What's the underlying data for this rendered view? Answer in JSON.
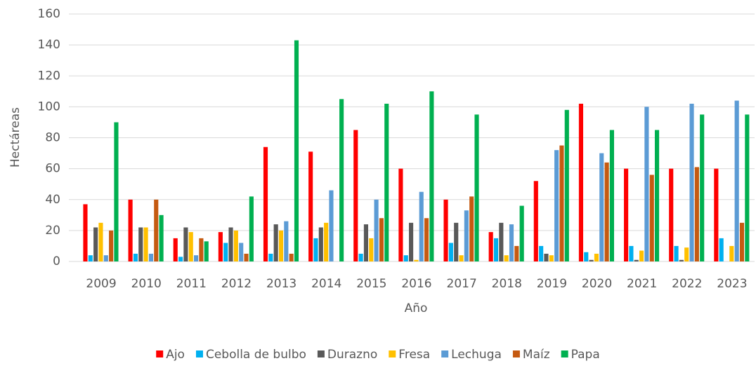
{
  "chart_data": {
    "type": "bar",
    "xlabel": "Año",
    "ylabel": "Hectáreas",
    "categories": [
      "2009",
      "2010",
      "2011",
      "2012",
      "2013",
      "2014",
      "2015",
      "2016",
      "2017",
      "2018",
      "2019",
      "2020",
      "2021",
      "2022",
      "2023"
    ],
    "series": [
      {
        "name": "Ajo",
        "color": "#ff0000",
        "values": [
          37,
          40,
          15,
          19,
          74,
          71,
          85,
          60,
          40,
          19,
          52,
          102,
          60,
          60,
          60
        ]
      },
      {
        "name": "Cebolla de bulbo",
        "color": "#00b0f0",
        "values": [
          4,
          5,
          3,
          12,
          5,
          15,
          5,
          4,
          12,
          15,
          10,
          6,
          10,
          10,
          15
        ]
      },
      {
        "name": "Durazno",
        "color": "#595959",
        "values": [
          22,
          22,
          22,
          22,
          24,
          22,
          24,
          25,
          25,
          25,
          5,
          1,
          1,
          1,
          0
        ]
      },
      {
        "name": "Fresa",
        "color": "#ffc000",
        "values": [
          25,
          22,
          19,
          20,
          20,
          25,
          15,
          1,
          4,
          4,
          4,
          5,
          7,
          9,
          10
        ]
      },
      {
        "name": "Lechuga",
        "color": "#5b9bd5",
        "values": [
          4,
          5,
          4,
          12,
          26,
          46,
          40,
          45,
          33,
          24,
          72,
          70,
          100,
          102,
          104
        ]
      },
      {
        "name": "Maíz",
        "color": "#c55a11",
        "values": [
          20,
          40,
          15,
          5,
          5,
          0,
          28,
          28,
          42,
          10,
          75,
          64,
          56,
          61,
          25
        ]
      },
      {
        "name": "Papa",
        "color": "#00b050",
        "values": [
          90,
          30,
          13,
          42,
          143,
          105,
          102,
          110,
          95,
          36,
          98,
          85,
          85,
          95,
          95
        ]
      }
    ],
    "ylim": [
      0,
      160
    ],
    "yticks": [
      0,
      20,
      40,
      60,
      80,
      100,
      120,
      140,
      160
    ],
    "grid": true,
    "legend": "bottom"
  }
}
